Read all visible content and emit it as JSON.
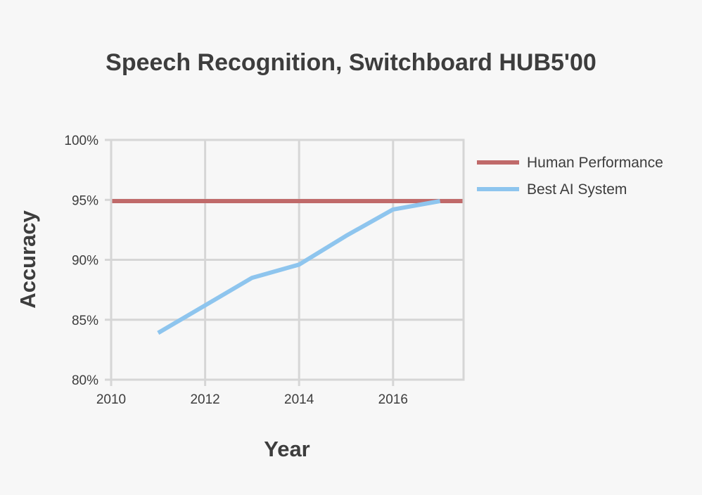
{
  "chart_data": {
    "type": "line",
    "title": "Speech Recognition, Switchboard HUB5'00",
    "xlabel": "Year",
    "ylabel": "Accuracy",
    "xlim": [
      2010,
      2017.5
    ],
    "ylim": [
      80,
      100
    ],
    "x_ticks": [
      2010,
      2012,
      2014,
      2016
    ],
    "x_tick_labels": [
      "2010",
      "2012",
      "2014",
      "2016"
    ],
    "y_ticks": [
      80,
      85,
      90,
      95,
      100
    ],
    "y_tick_labels": [
      "80%",
      "85%",
      "90%",
      "95%",
      "100%"
    ],
    "grid": true,
    "legend_position": "right",
    "series": [
      {
        "name": "Human Performance",
        "color": "#c06a6a",
        "x": [
          2010,
          2017.5
        ],
        "y": [
          94.9,
          94.9
        ]
      },
      {
        "name": "Best AI System",
        "color": "#8ec5ee",
        "x": [
          2011,
          2012,
          2013,
          2014,
          2015,
          2016,
          2017
        ],
        "y": [
          83.9,
          86.2,
          88.5,
          89.6,
          92.0,
          94.2,
          94.9
        ]
      }
    ]
  }
}
